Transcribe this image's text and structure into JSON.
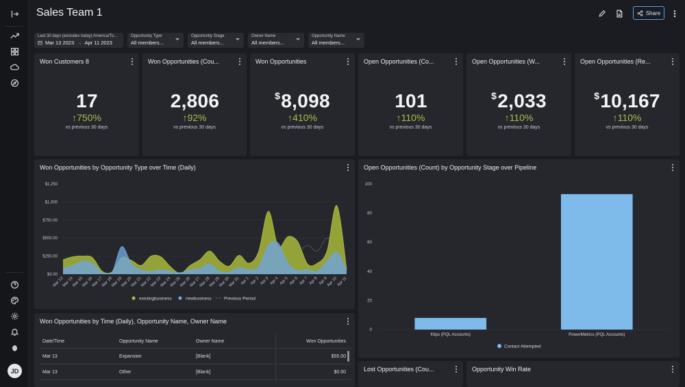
{
  "header": {
    "title": "Sales Team 1",
    "share_label": "Share"
  },
  "filters": [
    {
      "label": "Last 30 days (excludes today)   America/To...",
      "from": "Mar 13 2023",
      "to": "Apr 11 2023"
    },
    {
      "label": "Opportunity Type",
      "value": "All members..."
    },
    {
      "label": "Opportunity Stage",
      "value": "All members..."
    },
    {
      "label": "Owner Name",
      "value": "All members..."
    },
    {
      "label": "Opportunity Name",
      "value": "All members..."
    }
  ],
  "kpis": [
    {
      "title": "Won Customers 8",
      "prefix": "",
      "value": "17",
      "delta": "↑750%",
      "sub": "vs previous 30 days"
    },
    {
      "title": "Won Opportunities (Cou...",
      "prefix": "",
      "value": "2,806",
      "delta": "↑92%",
      "sub": "vs previous 30 days"
    },
    {
      "title": "Won Opportunities",
      "prefix": "$",
      "value": "8,098",
      "delta": "↑410%",
      "sub": "vs previous 30 days"
    },
    {
      "title": "Open Opportunities (Co...",
      "prefix": "",
      "value": "101",
      "delta": "↑110%",
      "sub": "vs previous 30 days"
    },
    {
      "title": "Open Opportunities (W...",
      "prefix": "$",
      "value": "2,033",
      "delta": "↑110%",
      "sub": "vs previous 30 days"
    },
    {
      "title": "Open Opportunities (Re...",
      "prefix": "$",
      "value": "10,167",
      "delta": "↑110%",
      "sub": "vs previous 30 days"
    }
  ],
  "area_panel": {
    "title": "Won Opportunities by Opportunity Type over Time (Daily)"
  },
  "bar_panel": {
    "title": "Open Opportunities (Count) by Opportunity Stage over Pipeline"
  },
  "table_panel": {
    "title": "Won Opportunities by Time (Daily), Opportunity Name, Owner Name",
    "columns": [
      "Date/Time",
      "Opportunity Name",
      "Owner Name",
      "Won Opportunities"
    ],
    "rows": [
      [
        "Mar 13",
        "Expansion",
        "[Blank]",
        "$55.00"
      ],
      [
        "Mar 13",
        "Other",
        "[Blank]",
        "$0.00"
      ]
    ]
  },
  "bottom_panels": {
    "lost": "Lost Opportunities (Cou...",
    "win_rate": "Opportunity Win Rate"
  },
  "user": {
    "initials": "JD"
  },
  "colors": {
    "existing": "#a8b93a",
    "new": "#6fa5db",
    "bar": "#7fbbea",
    "positive": "#a2c14a"
  },
  "chart_data": [
    {
      "type": "area",
      "title": "Won Opportunities by Opportunity Type over Time (Daily)",
      "xlabel": "",
      "ylabel": "",
      "categories": [
        "Mar 13",
        "Mar 14",
        "Mar 15",
        "Mar 16",
        "Mar 17",
        "Mar 18",
        "Mar 19",
        "Mar 20",
        "Mar 21",
        "Mar 22",
        "Mar 23",
        "Mar 24",
        "Mar 25",
        "Mar 26",
        "Mar 27",
        "Mar 28",
        "Mar 29",
        "Mar 30",
        "Mar 31",
        "Apr 1",
        "Apr 2",
        "Apr 3",
        "Apr 4",
        "Apr 5",
        "Apr 6",
        "Apr 7",
        "Apr 8",
        "Apr 9",
        "Apr 10",
        "Apr 11"
      ],
      "yticks": [
        "$0.00",
        "$250.00",
        "$500.00",
        "$750.00",
        "$1,000",
        "$1,250"
      ],
      "ylim": [
        0,
        1250
      ],
      "series": [
        {
          "name": "existingbusiness",
          "values": [
            200,
            240,
            250,
            230,
            40,
            30,
            230,
            190,
            120,
            250,
            240,
            100,
            10,
            120,
            200,
            320,
            180,
            110,
            260,
            150,
            310,
            870,
            380,
            520,
            450,
            140,
            150,
            320,
            950,
            60
          ]
        },
        {
          "name": "newbusiness",
          "values": [
            80,
            120,
            180,
            150,
            20,
            20,
            380,
            140,
            60,
            40,
            60,
            40,
            20,
            60,
            80,
            140,
            40,
            30,
            90,
            60,
            100,
            400,
            430,
            150,
            50,
            60,
            40,
            180,
            300,
            60
          ]
        },
        {
          "name": "Previous Period",
          "values": [
            null,
            null,
            null,
            null,
            null,
            null,
            null,
            null,
            null,
            null,
            null,
            null,
            null,
            null,
            null,
            null,
            null,
            null,
            null,
            null,
            null,
            null,
            null,
            null,
            300,
            400,
            320,
            500,
            350,
            200
          ]
        }
      ],
      "legend": [
        "existingbusiness",
        "newbusiness",
        "Previous Period"
      ]
    },
    {
      "type": "bar",
      "title": "Open Opportunities (Count) by Opportunity Stage over Pipeline",
      "categories": [
        "Klips (PQL Accounts)",
        "PowerMetrics (PQL Accounts)"
      ],
      "series": [
        {
          "name": "Contact Attempted",
          "values": [
            8,
            93
          ]
        }
      ],
      "yticks": [
        "0",
        "20",
        "40",
        "60",
        "80",
        "100"
      ],
      "ylim": [
        0,
        100
      ]
    }
  ]
}
